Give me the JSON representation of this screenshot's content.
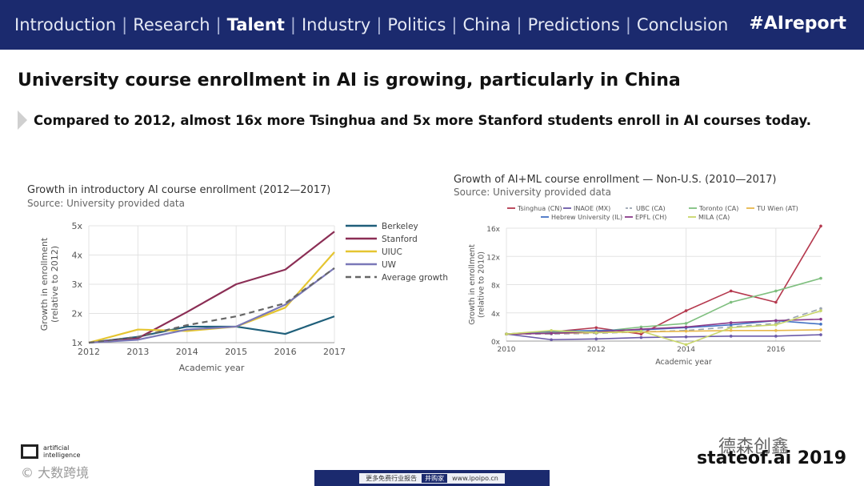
{
  "nav": {
    "items": [
      "Introduction",
      "Research",
      "Talent",
      "Industry",
      "Politics",
      "China",
      "Predictions",
      "Conclusion"
    ],
    "active": "Talent",
    "hashtag": "#AIreport"
  },
  "headline": "University course enrollment in AI is growing, particularly in China",
  "subheadline": "Compared to 2012, almost 16x more Tsinghua and 5x more Stanford students enroll in AI courses today.",
  "chart_data": [
    {
      "type": "line",
      "title": "Growth in introductory AI course enrollment (2012—2017)",
      "subtitle": "Source: University provided data",
      "xlabel": "Academic year",
      "ylabel": "Growth in enrollment (relative to 2012)",
      "x": [
        2012,
        2013,
        2014,
        2015,
        2016,
        2017
      ],
      "ylim": [
        1,
        5
      ],
      "yticks": [
        1,
        2,
        3,
        4,
        5
      ],
      "ytick_labels": [
        "1x",
        "2x",
        "3x",
        "4x",
        "5x"
      ],
      "grid": true,
      "legend": "right",
      "series": [
        {
          "name": "Berkeley",
          "color": "#1f5f7a",
          "dashed": false,
          "values": [
            1.0,
            1.2,
            1.55,
            1.55,
            1.3,
            1.9
          ]
        },
        {
          "name": "Stanford",
          "color": "#8b2e55",
          "dashed": false,
          "values": [
            1.0,
            1.15,
            2.05,
            3.0,
            3.5,
            4.8
          ]
        },
        {
          "name": "UIUC",
          "color": "#e5c531",
          "dashed": false,
          "values": [
            1.0,
            1.45,
            1.4,
            1.55,
            2.2,
            4.1
          ]
        },
        {
          "name": "UW",
          "color": "#7a78b8",
          "dashed": false,
          "values": [
            1.0,
            1.1,
            1.45,
            1.55,
            2.3,
            3.55
          ]
        },
        {
          "name": "Average growth",
          "color": "#666666",
          "dashed": true,
          "values": [
            1.0,
            1.2,
            1.6,
            1.9,
            2.35,
            3.55
          ]
        }
      ]
    },
    {
      "type": "line",
      "title": "Growth of AI+ML course enrollment — Non-U.S. (2010—2017)",
      "subtitle": "Source: University provided data",
      "xlabel": "Academic year",
      "ylabel": "Growth in enrollment (relative to 2010)",
      "x": [
        2010,
        2011,
        2012,
        2013,
        2014,
        2015,
        2016,
        2017
      ],
      "xticks": [
        2010,
        2012,
        2014,
        2016
      ],
      "ylim": [
        0,
        16
      ],
      "yticks": [
        0,
        4,
        8,
        12,
        16
      ],
      "ytick_labels": [
        "0x",
        "4x",
        "8x",
        "12x",
        "16x"
      ],
      "grid": true,
      "legend": "top",
      "series": [
        {
          "name": "Tsinghua (CN)",
          "color": "#b5394e",
          "dashed": false,
          "values": [
            1.0,
            1.3,
            1.9,
            1.0,
            4.3,
            7.1,
            5.5,
            16.3
          ]
        },
        {
          "name": "INAOE (MX)",
          "color": "#6b5aa8",
          "dashed": false,
          "values": [
            1.0,
            0.2,
            0.3,
            0.5,
            0.6,
            0.7,
            0.7,
            0.9
          ]
        },
        {
          "name": "UBC (CA)",
          "color": "#9aa3b0",
          "dashed": true,
          "values": [
            1.0,
            1.0,
            1.1,
            1.3,
            1.5,
            2.0,
            2.5,
            4.6
          ]
        },
        {
          "name": "Toronto (CA)",
          "color": "#7fbf7f",
          "dashed": false,
          "values": [
            1.0,
            1.2,
            1.3,
            2.0,
            2.5,
            5.5,
            7.1,
            8.9
          ]
        },
        {
          "name": "TU Wien (AT)",
          "color": "#e8b84b",
          "dashed": false,
          "values": [
            1.0,
            1.1,
            1.2,
            1.3,
            1.4,
            1.5,
            1.5,
            1.6
          ]
        },
        {
          "name": "Hebrew University (IL)",
          "color": "#4472c4",
          "dashed": false,
          "values": [
            1.0,
            1.4,
            1.5,
            1.6,
            1.9,
            2.3,
            2.9,
            2.4
          ]
        },
        {
          "name": "EPFL (CH)",
          "color": "#8a3a8a",
          "dashed": false,
          "values": [
            1.0,
            1.1,
            1.3,
            1.7,
            2.0,
            2.6,
            2.9,
            3.1
          ]
        },
        {
          "name": "MILA (CA)",
          "color": "#c8d66a",
          "dashed": false,
          "values": [
            1.0,
            1.5,
            1.2,
            1.4,
            -0.5,
            1.9,
            2.3,
            4.3
          ]
        }
      ]
    }
  ],
  "footer": {
    "logo_text": "artificial intelligence",
    "brand": "stateof.ai 2019",
    "watermark_left": "© 大数跨境",
    "watermark_right": "德森创鑫",
    "bar_text": "更多免费行业报告",
    "bar_pill": "井购家",
    "bar_url": "www.ipoipo.cn"
  }
}
